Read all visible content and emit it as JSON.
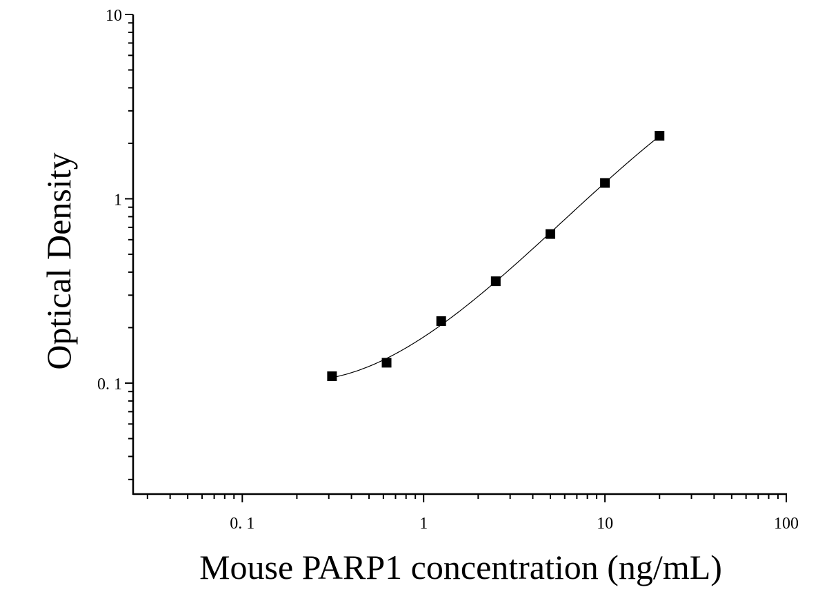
{
  "chart_data": {
    "type": "scatter",
    "title": "",
    "xlabel": "Mouse PARP1 concentration (ng/mL)",
    "ylabel": "Optical Density",
    "x_scale": "log",
    "y_scale": "log",
    "xlim": [
      0.025,
      100
    ],
    "ylim": [
      0.025,
      10
    ],
    "x_ticks": [
      {
        "value": 0.1,
        "label": "0. 1"
      },
      {
        "value": 1,
        "label": "1"
      },
      {
        "value": 10,
        "label": "10"
      },
      {
        "value": 100,
        "label": "100"
      }
    ],
    "y_ticks": [
      {
        "value": 0.1,
        "label": "0. 1"
      },
      {
        "value": 1,
        "label": "1"
      },
      {
        "value": 10,
        "label": "10"
      }
    ],
    "grid": false,
    "series": [
      {
        "x": [
          0.3125,
          0.625,
          1.25,
          2.5,
          5,
          10,
          20
        ],
        "y": [
          0.109,
          0.129,
          0.217,
          0.357,
          0.644,
          1.219,
          2.198
        ],
        "marker": "square",
        "color": "#000000"
      }
    ],
    "fit_curve": {
      "color": "#000000"
    }
  }
}
